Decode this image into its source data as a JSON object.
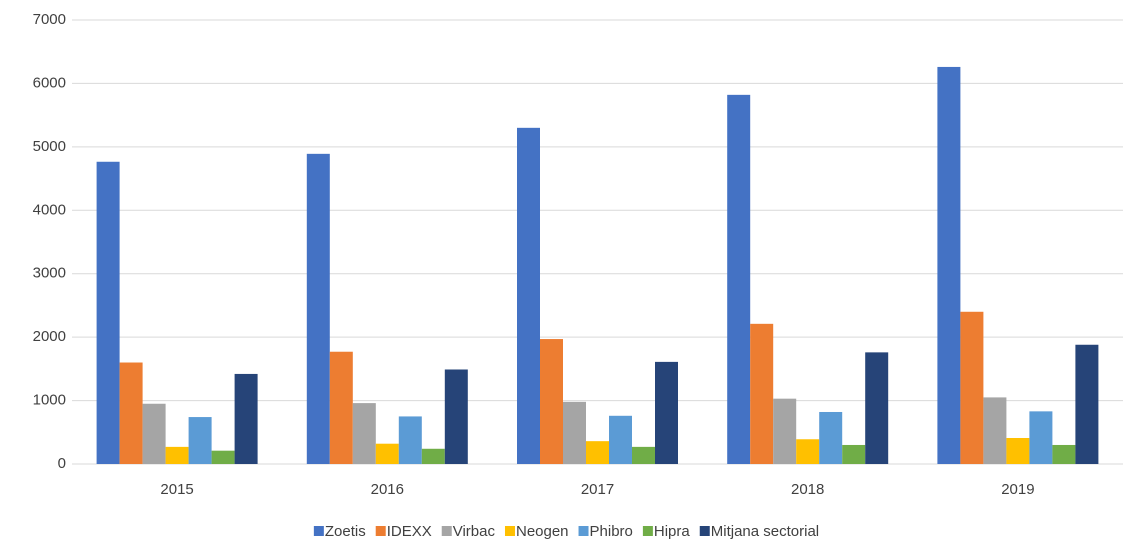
{
  "chart_data": {
    "type": "bar",
    "categories": [
      "2015",
      "2016",
      "2017",
      "2018",
      "2019"
    ],
    "series": [
      {
        "name": "Zoetis",
        "color": "#4472c4",
        "values": [
          4765,
          4890,
          5300,
          5820,
          6260
        ]
      },
      {
        "name": "IDEXX",
        "color": "#ed7d31",
        "values": [
          1600,
          1770,
          1970,
          2210,
          2400
        ]
      },
      {
        "name": "Virbac",
        "color": "#a5a5a5",
        "values": [
          950,
          960,
          980,
          1030,
          1050
        ]
      },
      {
        "name": "Neogen",
        "color": "#ffc000",
        "values": [
          270,
          320,
          360,
          390,
          410
        ]
      },
      {
        "name": "Phibro",
        "color": "#5b9bd5",
        "values": [
          740,
          750,
          760,
          820,
          830
        ]
      },
      {
        "name": "Hipra",
        "color": "#70ad47",
        "values": [
          210,
          240,
          270,
          300,
          300
        ]
      },
      {
        "name": "Mitjana sectorial",
        "color": "#264478",
        "values": [
          1420,
          1490,
          1610,
          1760,
          1880
        ]
      }
    ],
    "ylim": [
      0,
      7000
    ],
    "yticks": [
      0,
      1000,
      2000,
      3000,
      4000,
      5000,
      6000,
      7000
    ],
    "grid": true,
    "legend": "bottom"
  }
}
